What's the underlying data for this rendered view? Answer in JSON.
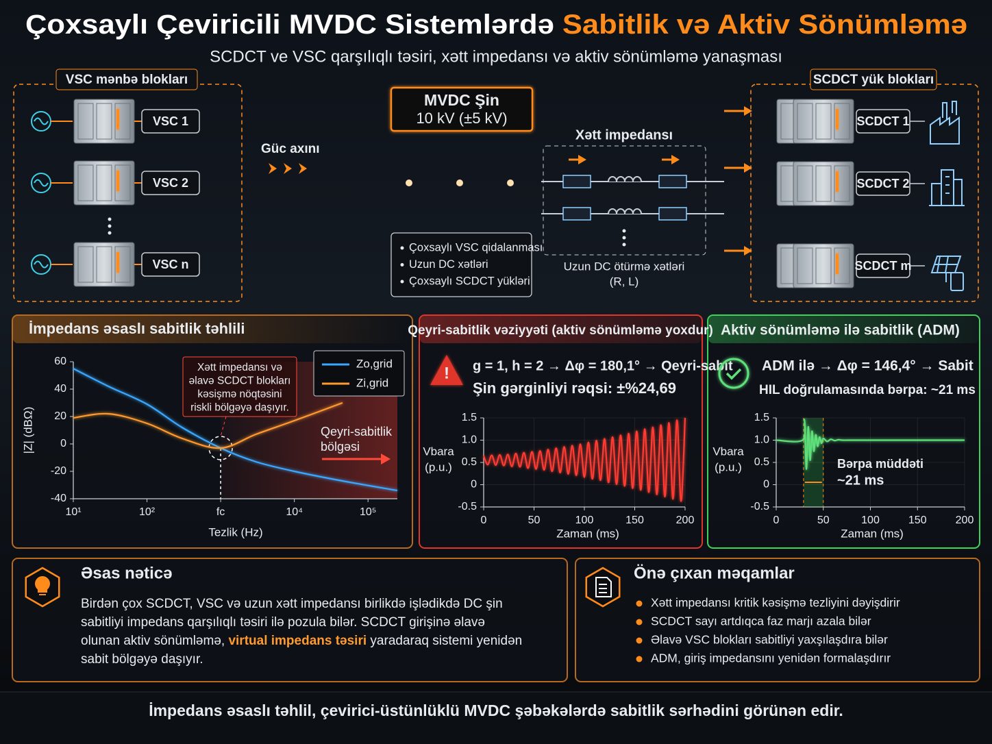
{
  "header": {
    "title": "Çoxsaylı Çeviricili MVDC Sistemlərdə",
    "title_highlight": "Sabitlik və Aktiv Sönümləmə",
    "subtitle": "SCDCT ve VSC qarşılıqlı təsiri, xətt impedansı və aktiv sönümləmə yanaşması"
  },
  "sources": {
    "label": "VSC mənbə blokları",
    "units": [
      "VSC 1",
      "VSC 2",
      "VSC n"
    ]
  },
  "power_flow": "Güc axını",
  "bus": {
    "title": "MVDC Şin",
    "voltage": "10 kV (±5 kV)",
    "notes": [
      "Çoxsaylı VSC qidalanması",
      "Uzun DC xətləri",
      "Çoxsaylı SCDCT yükləri"
    ]
  },
  "line": {
    "title": "Xətt impedansı",
    "caption": "Uzun DC ötürmə xətləri",
    "params": "(R, L)"
  },
  "loads": {
    "label": "SCDCT yük blokları",
    "units": [
      "SCDCT 1",
      "SCDCT 2",
      "SCDCT m"
    ]
  },
  "chart_data": [
    {
      "type": "line",
      "title": "İmpedans əsaslı sabitlik təhlili",
      "annotation": [
        "Xətt impedansı və",
        "əlavə SCDCT blokları",
        "kəsişmə nöqtəsini",
        "riskli bölgəyə daşıyır."
      ],
      "region_label": [
        "Qeyri-sabitlik",
        "bölgəsi"
      ],
      "xlabel": "Tezlik (Hz)",
      "ylabel": "|Z| (dBΩ)",
      "log_x": true,
      "grid": false,
      "legend": "upper right",
      "x": [
        10,
        30,
        100,
        300,
        1000,
        3000,
        10000,
        45000,
        250000
      ],
      "series": [
        {
          "name": "Zo,grid",
          "color": "#3aa8ff",
          "values": [
            55,
            42,
            29,
            12,
            -3,
            -13,
            -20,
            -27,
            -34
          ]
        },
        {
          "name": "Zi,grid",
          "color": "#ff9a2e",
          "values": [
            19,
            22,
            15,
            4,
            -3,
            7,
            17,
            30,
            null
          ]
        }
      ],
      "xlim": [
        10,
        250000
      ],
      "ylim": [
        -40,
        60
      ],
      "xticks": [
        {
          "value": 10,
          "label": "10¹"
        },
        {
          "value": 100,
          "label": "10²"
        },
        {
          "value": 1000,
          "label": "fc"
        },
        {
          "value": 10000,
          "label": "10⁴"
        },
        {
          "value": 100000,
          "label": "10⁵"
        }
      ],
      "yticks": [
        -40,
        -20,
        0,
        20,
        40,
        60
      ]
    },
    {
      "type": "line",
      "title": "Qeyri-sabitlik vəziyyəti (aktiv sönümləmə yoxdur)",
      "status": "g = 1, h = 2 → Δφ = 180,1° → Qeyri-sabit",
      "oscillation": "Şin gərginliyi rəqsi: ±%24,69",
      "xlabel": "Zaman (ms)",
      "ylabel": "Vbara",
      "yunit": "(p.u.)",
      "grid": true,
      "color": "#ff3b30",
      "x": [
        0,
        4,
        8,
        12,
        16,
        20,
        24,
        28,
        32,
        36,
        40,
        44,
        48,
        52,
        56,
        60,
        64,
        68,
        72,
        76,
        80,
        84,
        88,
        92,
        96,
        100,
        104,
        108,
        112,
        116,
        120,
        124,
        128,
        132,
        136,
        140,
        144,
        148,
        152,
        156,
        160,
        164,
        168,
        172,
        176,
        180,
        184,
        188,
        192,
        196,
        200
      ],
      "values": [
        0.65,
        0.45,
        0.66,
        0.44,
        0.67,
        0.43,
        0.68,
        0.41,
        0.7,
        0.4,
        0.72,
        0.37,
        0.74,
        0.35,
        0.76,
        0.33,
        0.79,
        0.3,
        0.82,
        0.27,
        0.85,
        0.24,
        0.88,
        0.21,
        0.91,
        0.17,
        0.95,
        0.13,
        0.99,
        0.1,
        1.03,
        0.05,
        1.07,
        0.01,
        1.11,
        -0.03,
        1.15,
        -0.08,
        1.2,
        -0.12,
        1.25,
        -0.17,
        1.29,
        -0.22,
        1.34,
        -0.27,
        1.39,
        -0.32,
        1.45,
        -0.37,
        1.5
      ],
      "xlim": [
        0,
        200
      ],
      "ylim": [
        -0.5,
        1.5
      ],
      "xticks": [
        0,
        50,
        100,
        150,
        200
      ],
      "yticks": [
        -0.5,
        0,
        0.5,
        {
          "value": 1,
          "label": "1.0"
        },
        1.5
      ]
    },
    {
      "type": "line",
      "title": "Aktiv sönümləmə ilə sabitlik (ADM)",
      "status": "ADM ilə → Δφ = 146,4° → Sabit",
      "recovery": "HIL doğrulamasında bərpa: ~21 ms",
      "band_label": [
        "Bərpa müddəti",
        "~21 ms"
      ],
      "band": [
        29,
        50
      ],
      "xlabel": "Zaman (ms)",
      "ylabel": "Vbara",
      "yunit": "(p.u.)",
      "grid": true,
      "color": "#5fe07a",
      "x": [
        0,
        28,
        30,
        32,
        34,
        36,
        38,
        40,
        42,
        44,
        46,
        48,
        50,
        54,
        58,
        62,
        66,
        70,
        80,
        100,
        120,
        140,
        160,
        180,
        200
      ],
      "values": [
        1.0,
        1.0,
        1.45,
        0.35,
        1.3,
        0.55,
        1.2,
        0.75,
        1.12,
        0.86,
        1.07,
        0.93,
        1.04,
        0.97,
        1.02,
        0.99,
        1.01,
        1.0,
        1.0,
        1.0,
        1.0,
        1.0,
        1.0,
        1.0,
        1.0
      ],
      "xlim": [
        0,
        200
      ],
      "ylim": [
        -0.5,
        1.5
      ],
      "xticks": [
        0,
        50,
        100,
        150,
        200
      ],
      "yticks": [
        -0.5,
        0,
        0.5,
        {
          "value": 1,
          "label": "1.0"
        },
        1.5
      ]
    }
  ],
  "conclusion": {
    "title": "Əsas nəticə",
    "text_before": "Birdən çox SCDCT, VSC və uzun xətt impedansı birlikdə işlədikdə DC şin sabitliyi impedans qarşılıqlı təsiri ilə pozula bilər. SCDCT girişinə əlavə olunan aktiv sönümləmə, ",
    "highlight": "virtual impedans təsiri",
    "text_after": " yaradaraq sistemi yenidən sabit bölgəyə daşıyır."
  },
  "highlights": {
    "title": "Önə çıxan məqamlar",
    "items": [
      "Xətt impedansı kritik kəsişmə tezliyini dəyişdirir",
      "SCDCT sayı artdıqca faz marjı azala bilər",
      "Əlavə VSC blokları sabitliyi yaxşılaşdıra bilər",
      "ADM, giriş impedansını yenidən formalaşdırır"
    ]
  },
  "footer": "İmpedans əsaslı təhlil, çevirici-üstünlüklü MVDC şəbəkələrdə sabitlik sərhədini görünən edir."
}
